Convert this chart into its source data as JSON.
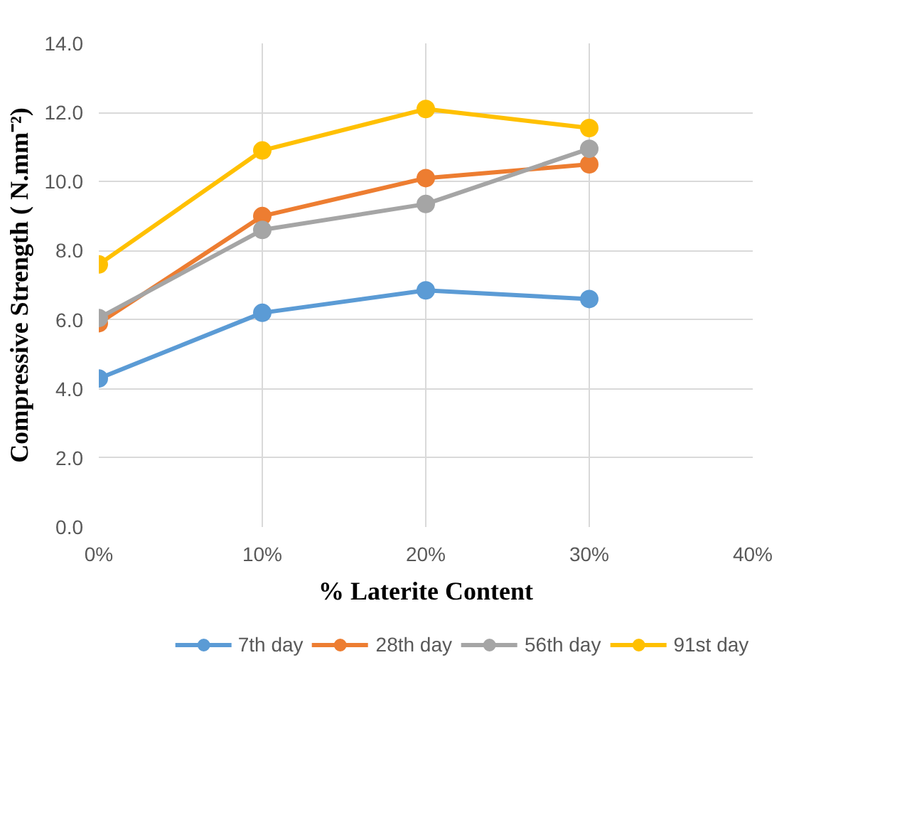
{
  "chart_data": {
    "type": "line",
    "xlabel": "% Laterite Content",
    "ylabel": "Compressive Strength ( N.mm⁻²)",
    "x": [
      0,
      10,
      20,
      30
    ],
    "series": [
      {
        "name": "7th day",
        "color": "#5b9bd5",
        "values": [
          4.3,
          6.2,
          6.85,
          6.6
        ]
      },
      {
        "name": "28th day",
        "color": "#ed7d31",
        "values": [
          5.9,
          9.0,
          10.1,
          10.5
        ]
      },
      {
        "name": "56th day",
        "color": "#a5a5a5",
        "values": [
          6.05,
          8.6,
          9.35,
          10.95
        ]
      },
      {
        "name": "91st day",
        "color": "#ffc000",
        "values": [
          7.6,
          10.9,
          12.1,
          11.55
        ]
      }
    ],
    "xlim": [
      0,
      40
    ],
    "xticks": [
      {
        "value": 0,
        "label": "0%"
      },
      {
        "value": 10,
        "label": "10%"
      },
      {
        "value": 20,
        "label": "20%"
      },
      {
        "value": 30,
        "label": "30%"
      },
      {
        "value": 40,
        "label": "40%"
      }
    ],
    "ylim": [
      0,
      14
    ],
    "yticks": [
      {
        "value": 0,
        "label": "0.0"
      },
      {
        "value": 2,
        "label": "2.0"
      },
      {
        "value": 4,
        "label": "4.0"
      },
      {
        "value": 6,
        "label": "6.0"
      },
      {
        "value": 8,
        "label": "8.0"
      },
      {
        "value": 10,
        "label": "10.0"
      },
      {
        "value": 12,
        "label": "12.0"
      },
      {
        "value": 14,
        "label": "14.0"
      }
    ],
    "grid": true,
    "legend": "bottom",
    "marker": "circle",
    "line_style": "solid"
  }
}
